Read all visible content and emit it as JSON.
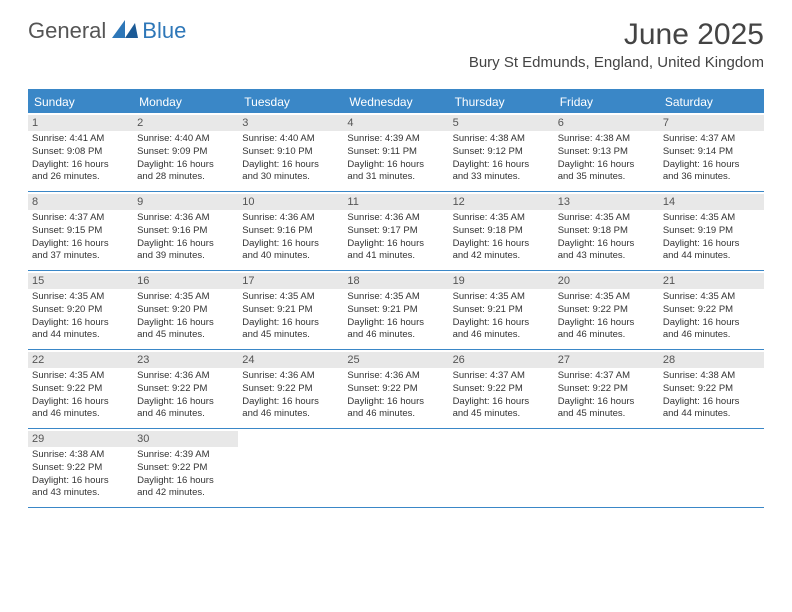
{
  "logo": {
    "general": "General",
    "blue": "Blue"
  },
  "title": "June 2025",
  "location": "Bury St Edmunds, England, United Kingdom",
  "colors": {
    "accent": "#3a87c7",
    "daynum_bg": "#e8e8e8",
    "text": "#333333"
  },
  "weekdays": [
    "Sunday",
    "Monday",
    "Tuesday",
    "Wednesday",
    "Thursday",
    "Friday",
    "Saturday"
  ],
  "weeks": [
    [
      {
        "n": "1",
        "sr": "Sunrise: 4:41 AM",
        "ss": "Sunset: 9:08 PM",
        "d1": "Daylight: 16 hours",
        "d2": "and 26 minutes."
      },
      {
        "n": "2",
        "sr": "Sunrise: 4:40 AM",
        "ss": "Sunset: 9:09 PM",
        "d1": "Daylight: 16 hours",
        "d2": "and 28 minutes."
      },
      {
        "n": "3",
        "sr": "Sunrise: 4:40 AM",
        "ss": "Sunset: 9:10 PM",
        "d1": "Daylight: 16 hours",
        "d2": "and 30 minutes."
      },
      {
        "n": "4",
        "sr": "Sunrise: 4:39 AM",
        "ss": "Sunset: 9:11 PM",
        "d1": "Daylight: 16 hours",
        "d2": "and 31 minutes."
      },
      {
        "n": "5",
        "sr": "Sunrise: 4:38 AM",
        "ss": "Sunset: 9:12 PM",
        "d1": "Daylight: 16 hours",
        "d2": "and 33 minutes."
      },
      {
        "n": "6",
        "sr": "Sunrise: 4:38 AM",
        "ss": "Sunset: 9:13 PM",
        "d1": "Daylight: 16 hours",
        "d2": "and 35 minutes."
      },
      {
        "n": "7",
        "sr": "Sunrise: 4:37 AM",
        "ss": "Sunset: 9:14 PM",
        "d1": "Daylight: 16 hours",
        "d2": "and 36 minutes."
      }
    ],
    [
      {
        "n": "8",
        "sr": "Sunrise: 4:37 AM",
        "ss": "Sunset: 9:15 PM",
        "d1": "Daylight: 16 hours",
        "d2": "and 37 minutes."
      },
      {
        "n": "9",
        "sr": "Sunrise: 4:36 AM",
        "ss": "Sunset: 9:16 PM",
        "d1": "Daylight: 16 hours",
        "d2": "and 39 minutes."
      },
      {
        "n": "10",
        "sr": "Sunrise: 4:36 AM",
        "ss": "Sunset: 9:16 PM",
        "d1": "Daylight: 16 hours",
        "d2": "and 40 minutes."
      },
      {
        "n": "11",
        "sr": "Sunrise: 4:36 AM",
        "ss": "Sunset: 9:17 PM",
        "d1": "Daylight: 16 hours",
        "d2": "and 41 minutes."
      },
      {
        "n": "12",
        "sr": "Sunrise: 4:35 AM",
        "ss": "Sunset: 9:18 PM",
        "d1": "Daylight: 16 hours",
        "d2": "and 42 minutes."
      },
      {
        "n": "13",
        "sr": "Sunrise: 4:35 AM",
        "ss": "Sunset: 9:18 PM",
        "d1": "Daylight: 16 hours",
        "d2": "and 43 minutes."
      },
      {
        "n": "14",
        "sr": "Sunrise: 4:35 AM",
        "ss": "Sunset: 9:19 PM",
        "d1": "Daylight: 16 hours",
        "d2": "and 44 minutes."
      }
    ],
    [
      {
        "n": "15",
        "sr": "Sunrise: 4:35 AM",
        "ss": "Sunset: 9:20 PM",
        "d1": "Daylight: 16 hours",
        "d2": "and 44 minutes."
      },
      {
        "n": "16",
        "sr": "Sunrise: 4:35 AM",
        "ss": "Sunset: 9:20 PM",
        "d1": "Daylight: 16 hours",
        "d2": "and 45 minutes."
      },
      {
        "n": "17",
        "sr": "Sunrise: 4:35 AM",
        "ss": "Sunset: 9:21 PM",
        "d1": "Daylight: 16 hours",
        "d2": "and 45 minutes."
      },
      {
        "n": "18",
        "sr": "Sunrise: 4:35 AM",
        "ss": "Sunset: 9:21 PM",
        "d1": "Daylight: 16 hours",
        "d2": "and 46 minutes."
      },
      {
        "n": "19",
        "sr": "Sunrise: 4:35 AM",
        "ss": "Sunset: 9:21 PM",
        "d1": "Daylight: 16 hours",
        "d2": "and 46 minutes."
      },
      {
        "n": "20",
        "sr": "Sunrise: 4:35 AM",
        "ss": "Sunset: 9:22 PM",
        "d1": "Daylight: 16 hours",
        "d2": "and 46 minutes."
      },
      {
        "n": "21",
        "sr": "Sunrise: 4:35 AM",
        "ss": "Sunset: 9:22 PM",
        "d1": "Daylight: 16 hours",
        "d2": "and 46 minutes."
      }
    ],
    [
      {
        "n": "22",
        "sr": "Sunrise: 4:35 AM",
        "ss": "Sunset: 9:22 PM",
        "d1": "Daylight: 16 hours",
        "d2": "and 46 minutes."
      },
      {
        "n": "23",
        "sr": "Sunrise: 4:36 AM",
        "ss": "Sunset: 9:22 PM",
        "d1": "Daylight: 16 hours",
        "d2": "and 46 minutes."
      },
      {
        "n": "24",
        "sr": "Sunrise: 4:36 AM",
        "ss": "Sunset: 9:22 PM",
        "d1": "Daylight: 16 hours",
        "d2": "and 46 minutes."
      },
      {
        "n": "25",
        "sr": "Sunrise: 4:36 AM",
        "ss": "Sunset: 9:22 PM",
        "d1": "Daylight: 16 hours",
        "d2": "and 46 minutes."
      },
      {
        "n": "26",
        "sr": "Sunrise: 4:37 AM",
        "ss": "Sunset: 9:22 PM",
        "d1": "Daylight: 16 hours",
        "d2": "and 45 minutes."
      },
      {
        "n": "27",
        "sr": "Sunrise: 4:37 AM",
        "ss": "Sunset: 9:22 PM",
        "d1": "Daylight: 16 hours",
        "d2": "and 45 minutes."
      },
      {
        "n": "28",
        "sr": "Sunrise: 4:38 AM",
        "ss": "Sunset: 9:22 PM",
        "d1": "Daylight: 16 hours",
        "d2": "and 44 minutes."
      }
    ],
    [
      {
        "n": "29",
        "sr": "Sunrise: 4:38 AM",
        "ss": "Sunset: 9:22 PM",
        "d1": "Daylight: 16 hours",
        "d2": "and 43 minutes."
      },
      {
        "n": "30",
        "sr": "Sunrise: 4:39 AM",
        "ss": "Sunset: 9:22 PM",
        "d1": "Daylight: 16 hours",
        "d2": "and 42 minutes."
      },
      null,
      null,
      null,
      null,
      null
    ]
  ]
}
